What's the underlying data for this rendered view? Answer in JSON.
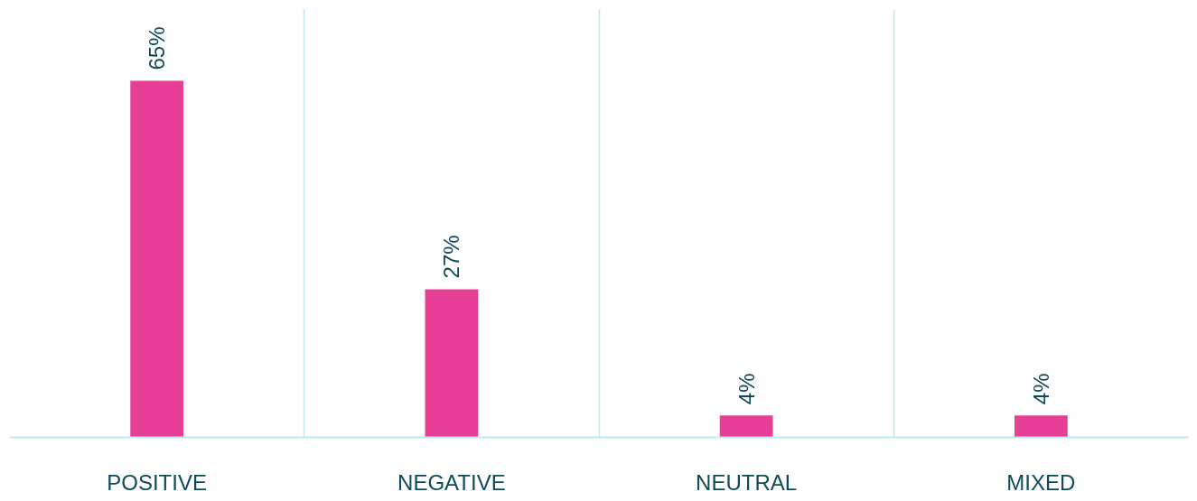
{
  "chart_data": {
    "type": "bar",
    "categories": [
      "POSITIVE",
      "NEGATIVE",
      "NEUTRAL",
      "MIXED"
    ],
    "values": [
      65,
      27,
      4,
      4
    ],
    "value_labels": [
      "65%",
      "27%",
      "4%",
      "4%"
    ],
    "color": "#e63f95",
    "grid": "x"
  }
}
